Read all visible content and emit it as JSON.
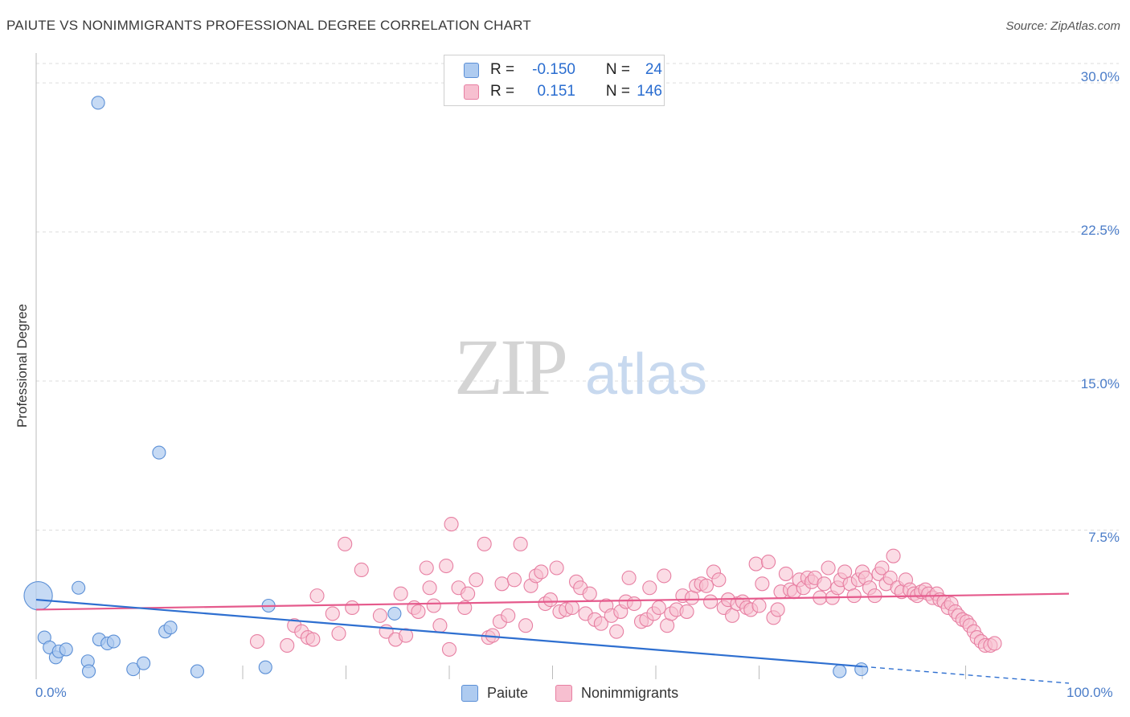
{
  "title": "PAIUTE VS NONIMMIGRANTS PROFESSIONAL DEGREE CORRELATION CHART",
  "source": "Source: ZipAtlas.com",
  "watermark": {
    "zip": "ZIP",
    "atlas": "atlas"
  },
  "legend": {
    "rows": [
      {
        "r_label": "R =",
        "r_value": "-0.150",
        "n_label": "N =",
        "n_value": "24"
      },
      {
        "r_label": "R =",
        "r_value": "0.151",
        "n_label": "N =",
        "n_value": "146"
      }
    ]
  },
  "bottom_legend": [
    "Paiute",
    "Nonimmigrants"
  ],
  "colors": {
    "paiute_fill": "#aecbf0",
    "paiute_stroke": "#5b8fd6",
    "paiute_line": "#2e6fd0",
    "nonimm_fill": "#f7bfd0",
    "nonimm_stroke": "#e77fa2",
    "nonimm_line": "#e55a8c",
    "tick_text": "#4a7cc8",
    "grid": "#dddddd"
  },
  "chart_data": {
    "type": "scatter",
    "title": "PAIUTE VS NONIMMIGRANTS PROFESSIONAL DEGREE CORRELATION CHART",
    "xlabel": "",
    "ylabel": "Professional Degree",
    "xlim": [
      0,
      100
    ],
    "ylim": [
      0,
      31.5
    ],
    "x_tick_labels": [
      "0.0%",
      "100.0%"
    ],
    "y_ticks": [
      7.5,
      15.0,
      22.5,
      30.0
    ],
    "y_tick_labels": [
      "7.5%",
      "15.0%",
      "22.5%",
      "30.0%"
    ],
    "grid": true,
    "legend_position": "top-center",
    "series": [
      {
        "name": "Paiute",
        "r": -0.15,
        "n": 24,
        "trend": {
          "x0": 0,
          "y0": 4.0,
          "x1": 100,
          "y1": -0.2,
          "solid_until": 80
        },
        "points": [
          {
            "x": 0.2,
            "y": 4.2,
            "s": 2.2
          },
          {
            "x": 6.0,
            "y": 29.0
          },
          {
            "x": 11.9,
            "y": 11.4
          },
          {
            "x": 0.8,
            "y": 2.1
          },
          {
            "x": 1.3,
            "y": 1.6
          },
          {
            "x": 1.9,
            "y": 1.1
          },
          {
            "x": 2.2,
            "y": 1.4
          },
          {
            "x": 2.9,
            "y": 1.5
          },
          {
            "x": 4.1,
            "y": 4.6
          },
          {
            "x": 5.0,
            "y": 0.9
          },
          {
            "x": 5.1,
            "y": 0.4
          },
          {
            "x": 6.1,
            "y": 2.0
          },
          {
            "x": 6.9,
            "y": 1.8
          },
          {
            "x": 7.5,
            "y": 1.9
          },
          {
            "x": 9.4,
            "y": 0.5
          },
          {
            "x": 10.4,
            "y": 0.8
          },
          {
            "x": 12.5,
            "y": 2.4
          },
          {
            "x": 13.0,
            "y": 2.6
          },
          {
            "x": 15.6,
            "y": 0.4
          },
          {
            "x": 22.5,
            "y": 3.7
          },
          {
            "x": 22.2,
            "y": 0.6
          },
          {
            "x": 34.7,
            "y": 3.3
          },
          {
            "x": 77.8,
            "y": 0.4
          },
          {
            "x": 79.9,
            "y": 0.5
          }
        ]
      },
      {
        "name": "Nonimmigrants",
        "r": 0.151,
        "n": 146,
        "trend": {
          "x0": 0,
          "y0": 3.5,
          "x1": 100,
          "y1": 4.3
        },
        "points": [
          {
            "x": 21.4,
            "y": 1.9
          },
          {
            "x": 24.3,
            "y": 1.7
          },
          {
            "x": 25.0,
            "y": 2.7
          },
          {
            "x": 25.7,
            "y": 2.4
          },
          {
            "x": 26.3,
            "y": 2.1
          },
          {
            "x": 26.8,
            "y": 2.0
          },
          {
            "x": 27.2,
            "y": 4.2
          },
          {
            "x": 28.7,
            "y": 3.3
          },
          {
            "x": 29.3,
            "y": 2.3
          },
          {
            "x": 29.9,
            "y": 6.8
          },
          {
            "x": 30.6,
            "y": 3.6
          },
          {
            "x": 31.5,
            "y": 5.5
          },
          {
            "x": 33.3,
            "y": 3.2
          },
          {
            "x": 33.9,
            "y": 2.4
          },
          {
            "x": 34.8,
            "y": 2.0
          },
          {
            "x": 35.3,
            "y": 4.3
          },
          {
            "x": 35.8,
            "y": 2.2
          },
          {
            "x": 36.6,
            "y": 3.6
          },
          {
            "x": 37.0,
            "y": 3.4
          },
          {
            "x": 37.8,
            "y": 5.6
          },
          {
            "x": 38.1,
            "y": 4.6
          },
          {
            "x": 38.5,
            "y": 3.7
          },
          {
            "x": 39.1,
            "y": 2.7
          },
          {
            "x": 39.7,
            "y": 5.7
          },
          {
            "x": 40.0,
            "y": 1.5
          },
          {
            "x": 40.2,
            "y": 7.8
          },
          {
            "x": 40.9,
            "y": 4.6
          },
          {
            "x": 41.5,
            "y": 3.6
          },
          {
            "x": 41.8,
            "y": 4.3
          },
          {
            "x": 42.6,
            "y": 5.0
          },
          {
            "x": 43.4,
            "y": 6.8
          },
          {
            "x": 43.8,
            "y": 2.1
          },
          {
            "x": 44.2,
            "y": 2.2
          },
          {
            "x": 44.9,
            "y": 2.9
          },
          {
            "x": 45.1,
            "y": 4.8
          },
          {
            "x": 45.7,
            "y": 3.2
          },
          {
            "x": 46.3,
            "y": 5.0
          },
          {
            "x": 46.9,
            "y": 6.8
          },
          {
            "x": 47.4,
            "y": 2.7
          },
          {
            "x": 47.9,
            "y": 4.7
          },
          {
            "x": 48.4,
            "y": 5.2
          },
          {
            "x": 48.9,
            "y": 5.4
          },
          {
            "x": 49.3,
            "y": 3.8
          },
          {
            "x": 49.8,
            "y": 4.0
          },
          {
            "x": 50.4,
            "y": 5.6
          },
          {
            "x": 50.7,
            "y": 3.4
          },
          {
            "x": 51.3,
            "y": 3.5
          },
          {
            "x": 51.9,
            "y": 3.6
          },
          {
            "x": 52.3,
            "y": 4.9
          },
          {
            "x": 52.7,
            "y": 4.6
          },
          {
            "x": 53.2,
            "y": 3.3
          },
          {
            "x": 53.6,
            "y": 4.3
          },
          {
            "x": 54.1,
            "y": 3.0
          },
          {
            "x": 54.7,
            "y": 2.8
          },
          {
            "x": 55.2,
            "y": 3.7
          },
          {
            "x": 55.7,
            "y": 3.2
          },
          {
            "x": 56.2,
            "y": 2.4
          },
          {
            "x": 56.6,
            "y": 3.4
          },
          {
            "x": 57.1,
            "y": 3.9
          },
          {
            "x": 57.4,
            "y": 5.1
          },
          {
            "x": 57.9,
            "y": 3.8
          },
          {
            "x": 58.6,
            "y": 2.9
          },
          {
            "x": 59.1,
            "y": 3.0
          },
          {
            "x": 59.4,
            "y": 4.6
          },
          {
            "x": 59.8,
            "y": 3.3
          },
          {
            "x": 60.3,
            "y": 3.6
          },
          {
            "x": 60.8,
            "y": 5.2
          },
          {
            "x": 61.1,
            "y": 2.7
          },
          {
            "x": 61.5,
            "y": 3.3
          },
          {
            "x": 62.0,
            "y": 3.5
          },
          {
            "x": 62.6,
            "y": 4.2
          },
          {
            "x": 63.0,
            "y": 3.4
          },
          {
            "x": 63.5,
            "y": 4.1
          },
          {
            "x": 63.9,
            "y": 4.7
          },
          {
            "x": 64.4,
            "y": 4.8
          },
          {
            "x": 64.9,
            "y": 4.7
          },
          {
            "x": 65.3,
            "y": 3.9
          },
          {
            "x": 65.6,
            "y": 5.4
          },
          {
            "x": 66.1,
            "y": 5.0
          },
          {
            "x": 66.6,
            "y": 3.6
          },
          {
            "x": 67.0,
            "y": 4.0
          },
          {
            "x": 67.4,
            "y": 3.2
          },
          {
            "x": 67.9,
            "y": 3.8
          },
          {
            "x": 68.4,
            "y": 3.9
          },
          {
            "x": 68.8,
            "y": 3.6
          },
          {
            "x": 69.2,
            "y": 3.5
          },
          {
            "x": 69.7,
            "y": 5.8
          },
          {
            "x": 70.0,
            "y": 3.7
          },
          {
            "x": 70.3,
            "y": 4.8
          },
          {
            "x": 70.9,
            "y": 5.9
          },
          {
            "x": 71.4,
            "y": 3.1
          },
          {
            "x": 71.8,
            "y": 3.5
          },
          {
            "x": 72.1,
            "y": 4.4
          },
          {
            "x": 72.6,
            "y": 5.3
          },
          {
            "x": 73.0,
            "y": 4.5
          },
          {
            "x": 73.4,
            "y": 4.4
          },
          {
            "x": 73.9,
            "y": 5.0
          },
          {
            "x": 74.3,
            "y": 4.6
          },
          {
            "x": 74.7,
            "y": 5.1
          },
          {
            "x": 75.1,
            "y": 4.9
          },
          {
            "x": 75.4,
            "y": 5.1
          },
          {
            "x": 75.9,
            "y": 4.1
          },
          {
            "x": 76.3,
            "y": 4.8
          },
          {
            "x": 76.7,
            "y": 5.6
          },
          {
            "x": 77.1,
            "y": 4.1
          },
          {
            "x": 77.6,
            "y": 4.6
          },
          {
            "x": 77.9,
            "y": 5.0
          },
          {
            "x": 78.3,
            "y": 5.4
          },
          {
            "x": 78.8,
            "y": 4.8
          },
          {
            "x": 79.2,
            "y": 4.2
          },
          {
            "x": 79.6,
            "y": 5.0
          },
          {
            "x": 80.0,
            "y": 5.4
          },
          {
            "x": 80.3,
            "y": 5.1
          },
          {
            "x": 80.7,
            "y": 4.6
          },
          {
            "x": 81.2,
            "y": 4.2
          },
          {
            "x": 81.6,
            "y": 5.3
          },
          {
            "x": 81.9,
            "y": 5.6
          },
          {
            "x": 82.3,
            "y": 4.8
          },
          {
            "x": 82.7,
            "y": 5.1
          },
          {
            "x": 83.0,
            "y": 6.2
          },
          {
            "x": 83.4,
            "y": 4.6
          },
          {
            "x": 83.8,
            "y": 4.4
          },
          {
            "x": 84.2,
            "y": 5.0
          },
          {
            "x": 84.6,
            "y": 4.5
          },
          {
            "x": 85.0,
            "y": 4.3
          },
          {
            "x": 85.3,
            "y": 4.2
          },
          {
            "x": 85.7,
            "y": 4.4
          },
          {
            "x": 86.1,
            "y": 4.5
          },
          {
            "x": 86.4,
            "y": 4.3
          },
          {
            "x": 86.8,
            "y": 4.1
          },
          {
            "x": 87.2,
            "y": 4.3
          },
          {
            "x": 87.5,
            "y": 4.0
          },
          {
            "x": 87.9,
            "y": 3.9
          },
          {
            "x": 88.3,
            "y": 3.6
          },
          {
            "x": 88.6,
            "y": 3.8
          },
          {
            "x": 89.0,
            "y": 3.4
          },
          {
            "x": 89.3,
            "y": 3.2
          },
          {
            "x": 89.7,
            "y": 3.0
          },
          {
            "x": 90.1,
            "y": 2.9
          },
          {
            "x": 90.4,
            "y": 2.7
          },
          {
            "x": 90.8,
            "y": 2.4
          },
          {
            "x": 91.1,
            "y": 2.1
          },
          {
            "x": 91.5,
            "y": 1.9
          },
          {
            "x": 91.9,
            "y": 1.7
          },
          {
            "x": 92.4,
            "y": 1.7
          },
          {
            "x": 92.8,
            "y": 1.8
          }
        ]
      }
    ]
  }
}
